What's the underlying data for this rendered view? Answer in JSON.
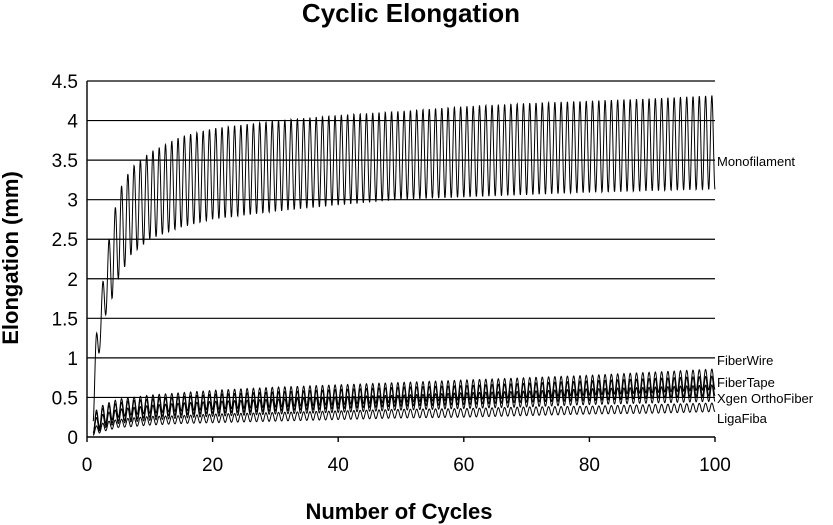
{
  "chart_data": {
    "type": "line",
    "title": "Cyclic Elongation",
    "xlabel": "Number of Cycles",
    "ylabel": "Elongation (mm)",
    "xlim": [
      0,
      100
    ],
    "ylim": [
      0,
      4.5
    ],
    "x_ticks": [
      "0",
      "20",
      "40",
      "60",
      "80",
      "100"
    ],
    "y_ticks": [
      "0",
      "0.5",
      "1",
      "1.5",
      "2",
      "2.5",
      "3",
      "3.5",
      "4",
      "4.5"
    ],
    "grid": "horizontal",
    "legend": "inline-right",
    "x_cycles": [
      1,
      2,
      3,
      4,
      5,
      7,
      10,
      15,
      20,
      30,
      40,
      50,
      60,
      70,
      80,
      90,
      100
    ],
    "series": [
      {
        "name": "Monofilament",
        "min": [
          0.2,
          1.1,
          1.55,
          1.75,
          2.0,
          2.3,
          2.5,
          2.65,
          2.75,
          2.85,
          2.93,
          3.0,
          3.03,
          3.06,
          3.09,
          3.11,
          3.13
        ],
        "max": [
          1.0,
          1.6,
          2.3,
          2.7,
          3.1,
          3.4,
          3.6,
          3.8,
          3.9,
          4.0,
          4.07,
          4.12,
          4.18,
          4.22,
          4.25,
          4.28,
          4.32
        ]
      },
      {
        "name": "FiberWire",
        "min": [
          0.05,
          0.12,
          0.18,
          0.22,
          0.25,
          0.28,
          0.3,
          0.33,
          0.35,
          0.38,
          0.41,
          0.44,
          0.47,
          0.5,
          0.53,
          0.56,
          0.6
        ],
        "max": [
          0.3,
          0.38,
          0.42,
          0.45,
          0.48,
          0.5,
          0.53,
          0.56,
          0.59,
          0.63,
          0.66,
          0.69,
          0.72,
          0.75,
          0.78,
          0.82,
          0.86
        ]
      },
      {
        "name": "FiberTape",
        "min": [
          0.05,
          0.1,
          0.15,
          0.18,
          0.2,
          0.22,
          0.25,
          0.28,
          0.3,
          0.33,
          0.36,
          0.39,
          0.41,
          0.44,
          0.46,
          0.49,
          0.52
        ],
        "max": [
          0.28,
          0.34,
          0.38,
          0.41,
          0.43,
          0.46,
          0.48,
          0.51,
          0.54,
          0.57,
          0.6,
          0.63,
          0.65,
          0.68,
          0.71,
          0.74,
          0.77
        ]
      },
      {
        "name": "Xgen OrthoFiber",
        "min": [
          0.03,
          0.08,
          0.12,
          0.15,
          0.17,
          0.19,
          0.21,
          0.24,
          0.26,
          0.29,
          0.31,
          0.34,
          0.36,
          0.38,
          0.41,
          0.43,
          0.45
        ],
        "max": [
          0.22,
          0.27,
          0.3,
          0.33,
          0.35,
          0.37,
          0.4,
          0.43,
          0.45,
          0.48,
          0.51,
          0.53,
          0.56,
          0.58,
          0.61,
          0.63,
          0.66
        ]
      },
      {
        "name": "LigaFiba",
        "min": [
          0.02,
          0.05,
          0.08,
          0.1,
          0.12,
          0.13,
          0.15,
          0.17,
          0.18,
          0.2,
          0.22,
          0.24,
          0.25,
          0.27,
          0.29,
          0.3,
          0.32
        ],
        "max": [
          0.12,
          0.16,
          0.19,
          0.21,
          0.22,
          0.24,
          0.26,
          0.27,
          0.29,
          0.31,
          0.33,
          0.35,
          0.36,
          0.38,
          0.39,
          0.41,
          0.43
        ]
      }
    ]
  }
}
